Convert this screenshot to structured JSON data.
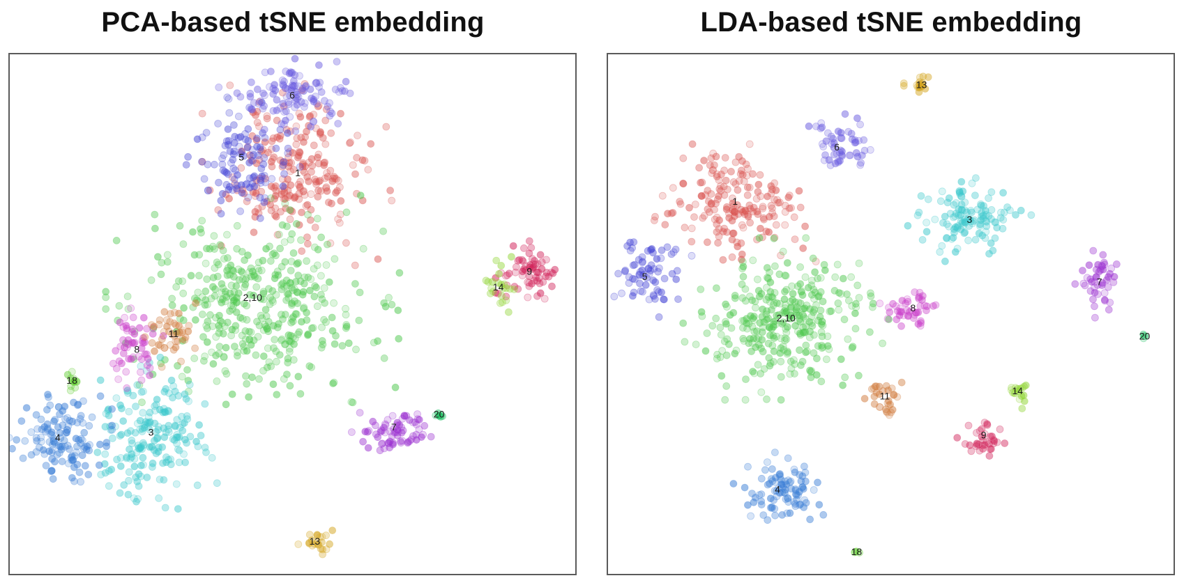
{
  "chart_data": [
    {
      "type": "scatter",
      "title": "PCA-based tSNE embedding",
      "xlim": [
        0,
        100
      ],
      "ylim": [
        0,
        100
      ],
      "clusters": [
        {
          "label": "1",
          "color": "#d9534f",
          "cx": 51,
          "cy": 77,
          "sx": 6.5,
          "sy": 7,
          "n": 230,
          "lx": 51,
          "ly": 77
        },
        {
          "label": "2,10",
          "color": "#4fc84f",
          "cx": 43,
          "cy": 52,
          "sx": 10,
          "sy": 8,
          "n": 420,
          "lx": 43,
          "ly": 53
        },
        {
          "label": "3",
          "color": "#3cc8cc",
          "cx": 25,
          "cy": 26,
          "sx": 4.5,
          "sy": 6,
          "n": 190,
          "lx": 25,
          "ly": 27
        },
        {
          "label": "4",
          "color": "#3b7fd6",
          "cx": 9,
          "cy": 26,
          "sx": 3.5,
          "sy": 4,
          "n": 130,
          "lx": 8.5,
          "ly": 26
        },
        {
          "label": "5",
          "color": "#4848d6",
          "cx": 41,
          "cy": 80,
          "sx": 4,
          "sy": 4.5,
          "n": 110,
          "lx": 41,
          "ly": 80
        },
        {
          "label": "6",
          "color": "#6a5ce0",
          "cx": 50,
          "cy": 92,
          "sx": 5,
          "sy": 2.8,
          "n": 110,
          "lx": 50,
          "ly": 92
        },
        {
          "label": "7",
          "color": "#9b30d0",
          "cx": 68,
          "cy": 27,
          "sx": 3.2,
          "sy": 2,
          "n": 70,
          "lx": 68,
          "ly": 28
        },
        {
          "label": "8",
          "color": "#c93cc9",
          "cx": 22,
          "cy": 43,
          "sx": 2.2,
          "sy": 3.5,
          "n": 55,
          "lx": 22.5,
          "ly": 43
        },
        {
          "label": "9",
          "color": "#d1235a",
          "cx": 92,
          "cy": 58,
          "sx": 2.3,
          "sy": 2.5,
          "n": 65,
          "lx": 92,
          "ly": 58
        },
        {
          "label": "11",
          "color": "#d07a3c",
          "cx": 28.5,
          "cy": 46,
          "sx": 2,
          "sy": 2.5,
          "n": 45,
          "lx": 29,
          "ly": 46
        },
        {
          "label": "13",
          "color": "#d4a520",
          "cx": 54,
          "cy": 6,
          "sx": 1.2,
          "sy": 1.2,
          "n": 22,
          "lx": 54,
          "ly": 6
        },
        {
          "label": "14",
          "color": "#8ed430",
          "cx": 86.5,
          "cy": 55,
          "sx": 1.3,
          "sy": 2.3,
          "n": 22,
          "lx": 86.5,
          "ly": 55
        },
        {
          "label": "18",
          "color": "#5ccc2a",
          "cx": 11,
          "cy": 37,
          "sx": 0.5,
          "sy": 1.1,
          "n": 12,
          "lx": 11,
          "ly": 37
        },
        {
          "label": "20",
          "color": "#1bbf60",
          "cx": 76,
          "cy": 30.5,
          "sx": 0.6,
          "sy": 0.4,
          "n": 7,
          "lx": 76,
          "ly": 30.5
        }
      ]
    },
    {
      "type": "scatter",
      "title": "LDA-based tSNE embedding",
      "xlim": [
        0,
        100
      ],
      "ylim": [
        0,
        100
      ],
      "clusters": [
        {
          "label": "1",
          "color": "#d9534f",
          "cx": 22.5,
          "cy": 71,
          "sx": 5.5,
          "sy": 4.5,
          "n": 180,
          "lx": 22.5,
          "ly": 71.5
        },
        {
          "label": "2,10",
          "color": "#4fc84f",
          "cx": 31.5,
          "cy": 49,
          "sx": 7,
          "sy": 6,
          "n": 320,
          "lx": 31.5,
          "ly": 49
        },
        {
          "label": "3",
          "color": "#3cc8cc",
          "cx": 64,
          "cy": 68,
          "sx": 4.2,
          "sy": 3.2,
          "n": 120,
          "lx": 64,
          "ly": 68
        },
        {
          "label": "4",
          "color": "#3b7fd6",
          "cx": 30,
          "cy": 16,
          "sx": 3.2,
          "sy": 2.8,
          "n": 95,
          "lx": 30,
          "ly": 16
        },
        {
          "label": "5",
          "color": "#4848d6",
          "cx": 6.5,
          "cy": 57,
          "sx": 3.2,
          "sy": 3.2,
          "n": 70,
          "lx": 6.5,
          "ly": 57
        },
        {
          "label": "6",
          "color": "#6a5ce0",
          "cx": 40.5,
          "cy": 82,
          "sx": 2.6,
          "sy": 2.5,
          "n": 55,
          "lx": 40.5,
          "ly": 82
        },
        {
          "label": "7",
          "color": "#9b30d0",
          "cx": 87,
          "cy": 56,
          "sx": 1.8,
          "sy": 2.6,
          "n": 45,
          "lx": 87,
          "ly": 56
        },
        {
          "label": "8",
          "color": "#c93cc9",
          "cx": 54,
          "cy": 51,
          "sx": 2.3,
          "sy": 1.8,
          "n": 45,
          "lx": 54,
          "ly": 51
        },
        {
          "label": "9",
          "color": "#d1235a",
          "cx": 66.5,
          "cy": 26,
          "sx": 1.8,
          "sy": 2,
          "n": 35,
          "lx": 66.5,
          "ly": 26.5
        },
        {
          "label": "11",
          "color": "#d07a3c",
          "cx": 49,
          "cy": 34,
          "sx": 1.5,
          "sy": 1.6,
          "n": 30,
          "lx": 49,
          "ly": 34
        },
        {
          "label": "13",
          "color": "#d4a520",
          "cx": 55.5,
          "cy": 94,
          "sx": 1.2,
          "sy": 0.8,
          "n": 18,
          "lx": 55.5,
          "ly": 94
        },
        {
          "label": "14",
          "color": "#8ed430",
          "cx": 72.5,
          "cy": 35,
          "sx": 0.8,
          "sy": 1.5,
          "n": 16,
          "lx": 72.5,
          "ly": 35
        },
        {
          "label": "18",
          "color": "#5ccc2a",
          "cx": 44,
          "cy": 4,
          "sx": 0.3,
          "sy": 0.3,
          "n": 4,
          "lx": 44,
          "ly": 4
        },
        {
          "label": "20",
          "color": "#1bbf60",
          "cx": 95,
          "cy": 45.5,
          "sx": 0.3,
          "sy": 0.3,
          "n": 4,
          "lx": 95,
          "ly": 45.5
        }
      ]
    }
  ]
}
